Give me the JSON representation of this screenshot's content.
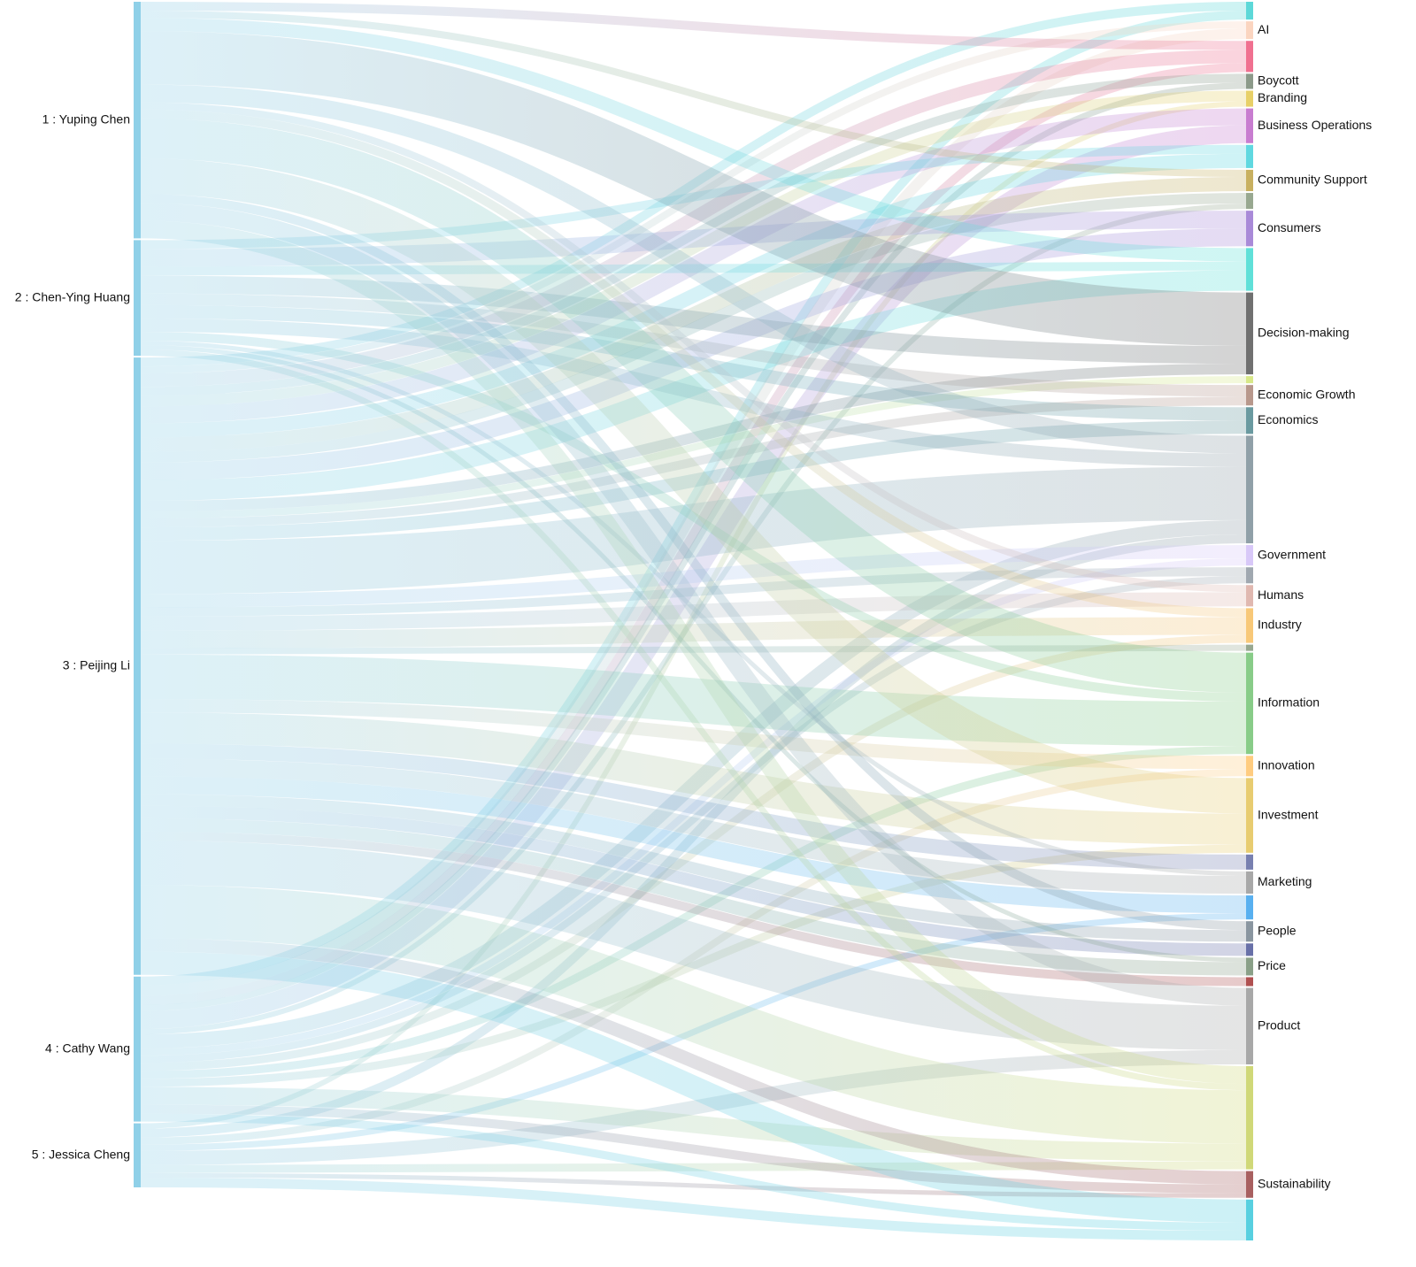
{
  "chart_data": {
    "type": "sankey",
    "nodes": [
      {
        "name": "1 : Yuping Chen",
        "color": "#8fd0e8"
      },
      {
        "name": "2 : Chen-Ying Huang",
        "color": "#8fd0e8"
      },
      {
        "name": "3 : Peijing Li",
        "color": "#8fd0e8"
      },
      {
        "name": "4 : Cathy Wang",
        "color": "#8fd0e8"
      },
      {
        "name": "5 : Jessica Cheng",
        "color": "#8fd0e8"
      },
      {
        "name": null,
        "color": "#5dd8d8"
      },
      {
        "name": "AI",
        "color": "#fbd5c0"
      },
      {
        "name": null,
        "color": "#f07090"
      },
      {
        "name": "Boycott",
        "color": "#8c9a8a"
      },
      {
        "name": "Branding",
        "color": "#e8d068"
      },
      {
        "name": "Business Operations",
        "color": "#c87dd0"
      },
      {
        "name": null,
        "color": "#60d8e0"
      },
      {
        "name": "Community Support",
        "color": "#c8b060"
      },
      {
        "name": null,
        "color": "#98a890"
      },
      {
        "name": "Consumers",
        "color": "#a98ad8"
      },
      {
        "name": null,
        "color": "#60e0d8"
      },
      {
        "name": "Decision-making",
        "color": "#707070"
      },
      {
        "name": null,
        "color": "#d8e888"
      },
      {
        "name": "Economic Growth",
        "color": "#b8988c"
      },
      {
        "name": "Economics",
        "color": "#6a9aa0"
      },
      {
        "name": null,
        "color": "#90a0a8"
      },
      {
        "name": "Government",
        "color": "#d8c8f8"
      },
      {
        "name": null,
        "color": "#a0a8b0"
      },
      {
        "name": "Humans",
        "color": "#e0b8b0"
      },
      {
        "name": "Industry",
        "color": "#f8c878"
      },
      {
        "name": null,
        "color": "#98a890"
      },
      {
        "name": "Information",
        "color": "#88cc88"
      },
      {
        "name": "Innovation",
        "color": "#ffcc80"
      },
      {
        "name": "Investment",
        "color": "#e8cc70"
      },
      {
        "name": null,
        "color": "#7880b0"
      },
      {
        "name": "Marketing",
        "color": "#a8a8a8"
      },
      {
        "name": null,
        "color": "#58b0f0"
      },
      {
        "name": "People",
        "color": "#8a96a0"
      },
      {
        "name": null,
        "color": "#6870a8"
      },
      {
        "name": "Price",
        "color": "#8aa088"
      },
      {
        "name": null,
        "color": "#b05050"
      },
      {
        "name": "Product",
        "color": "#a8a8a8"
      },
      {
        "name": null,
        "color": "#d0d878"
      },
      {
        "name": "Sustainability",
        "color": "#a86060"
      },
      {
        "name": null,
        "color": "#58d0e0"
      }
    ],
    "links": [
      {
        "source": 3,
        "target": 5,
        "value": 10
      },
      {
        "source": 2,
        "target": 5,
        "value": 10
      },
      {
        "source": 3,
        "target": 6,
        "value": 12
      },
      {
        "source": 2,
        "target": 6,
        "value": 8
      },
      {
        "source": 0,
        "target": 7,
        "value": 10
      },
      {
        "source": 2,
        "target": 7,
        "value": 15
      },
      {
        "source": 3,
        "target": 7,
        "value": 10
      },
      {
        "source": 2,
        "target": 8,
        "value": 10
      },
      {
        "source": 3,
        "target": 8,
        "value": 7
      },
      {
        "source": 2,
        "target": 9,
        "value": 12
      },
      {
        "source": 4,
        "target": 9,
        "value": 6
      },
      {
        "source": 3,
        "target": 10,
        "value": 20
      },
      {
        "source": 2,
        "target": 10,
        "value": 19
      },
      {
        "source": 1,
        "target": 11,
        "value": 10
      },
      {
        "source": 2,
        "target": 11,
        "value": 16
      },
      {
        "source": 0,
        "target": 12,
        "value": 8
      },
      {
        "source": 2,
        "target": 12,
        "value": 16
      },
      {
        "source": 2,
        "target": 13,
        "value": 12
      },
      {
        "source": 3,
        "target": 13,
        "value": 6
      },
      {
        "source": 1,
        "target": 14,
        "value": 20
      },
      {
        "source": 2,
        "target": 14,
        "value": 20
      },
      {
        "source": 0,
        "target": 15,
        "value": 15
      },
      {
        "source": 1,
        "target": 15,
        "value": 10
      },
      {
        "source": 2,
        "target": 15,
        "value": 23
      },
      {
        "source": 0,
        "target": 16,
        "value": 60
      },
      {
        "source": 1,
        "target": 16,
        "value": 20
      },
      {
        "source": 2,
        "target": 16,
        "value": 12
      },
      {
        "source": 2,
        "target": 17,
        "value": 8
      },
      {
        "source": 1,
        "target": 18,
        "value": 13
      },
      {
        "source": 2,
        "target": 18,
        "value": 10
      },
      {
        "source": 1,
        "target": 19,
        "value": 15
      },
      {
        "source": 2,
        "target": 19,
        "value": 15
      },
      {
        "source": 0,
        "target": 20,
        "value": 20
      },
      {
        "source": 1,
        "target": 20,
        "value": 15
      },
      {
        "source": 2,
        "target": 20,
        "value": 60
      },
      {
        "source": 3,
        "target": 20,
        "value": 16
      },
      {
        "source": 4,
        "target": 20,
        "value": 10
      },
      {
        "source": 2,
        "target": 21,
        "value": 15
      },
      {
        "source": 3,
        "target": 21,
        "value": 8
      },
      {
        "source": 2,
        "target": 22,
        "value": 10
      },
      {
        "source": 3,
        "target": 22,
        "value": 8
      },
      {
        "source": 0,
        "target": 23,
        "value": 8
      },
      {
        "source": 2,
        "target": 23,
        "value": 16
      },
      {
        "source": 0,
        "target": 24,
        "value": 10
      },
      {
        "source": 2,
        "target": 24,
        "value": 20
      },
      {
        "source": 3,
        "target": 24,
        "value": 9
      },
      {
        "source": 2,
        "target": 25,
        "value": 7
      },
      {
        "source": 0,
        "target": 26,
        "value": 45
      },
      {
        "source": 1,
        "target": 26,
        "value": 10
      },
      {
        "source": 2,
        "target": 26,
        "value": 50
      },
      {
        "source": 3,
        "target": 26,
        "value": 9
      },
      {
        "source": 2,
        "target": 27,
        "value": 15
      },
      {
        "source": 4,
        "target": 27,
        "value": 8
      },
      {
        "source": 0,
        "target": 28,
        "value": 40
      },
      {
        "source": 2,
        "target": 28,
        "value": 35
      },
      {
        "source": 3,
        "target": 28,
        "value": 9
      },
      {
        "source": 2,
        "target": 29,
        "value": 17
      },
      {
        "source": 1,
        "target": 30,
        "value": 5
      },
      {
        "source": 2,
        "target": 30,
        "value": 20
      },
      {
        "source": 2,
        "target": 31,
        "value": 20
      },
      {
        "source": 4,
        "target": 31,
        "value": 7
      },
      {
        "source": 0,
        "target": 32,
        "value": 10
      },
      {
        "source": 2,
        "target": 32,
        "value": 13
      },
      {
        "source": 2,
        "target": 33,
        "value": 14
      },
      {
        "source": 1,
        "target": 34,
        "value": 5
      },
      {
        "source": 2,
        "target": 34,
        "value": 15
      },
      {
        "source": 2,
        "target": 35,
        "value": 10
      },
      {
        "source": 0,
        "target": 36,
        "value": 20
      },
      {
        "source": 2,
        "target": 36,
        "value": 50
      },
      {
        "source": 4,
        "target": 36,
        "value": 16
      },
      {
        "source": 0,
        "target": 37,
        "value": 20
      },
      {
        "source": 1,
        "target": 37,
        "value": 7
      },
      {
        "source": 2,
        "target": 37,
        "value": 60
      },
      {
        "source": 3,
        "target": 37,
        "value": 20
      },
      {
        "source": 4,
        "target": 37,
        "value": 9
      },
      {
        "source": 2,
        "target": 38,
        "value": 15
      },
      {
        "source": 3,
        "target": 38,
        "value": 10
      },
      {
        "source": 4,
        "target": 38,
        "value": 5
      },
      {
        "source": 2,
        "target": 39,
        "value": 26
      },
      {
        "source": 3,
        "target": 39,
        "value": 9
      },
      {
        "source": 4,
        "target": 39,
        "value": 11
      }
    ]
  }
}
